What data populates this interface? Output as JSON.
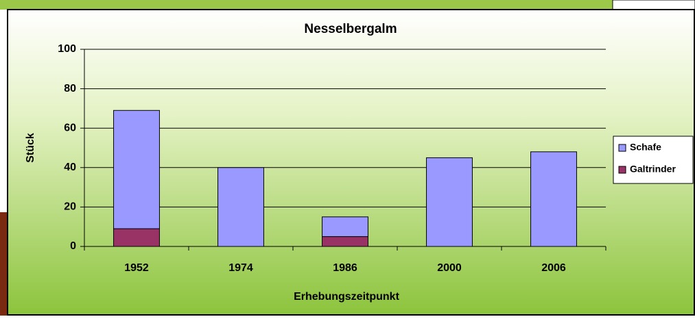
{
  "chart_data": {
    "type": "stacked_bar",
    "title": "Nesselbergalm",
    "x_label": "Erhebungszeitpunkt",
    "y_label": "Stück",
    "categories": [
      "1952",
      "1974",
      "1986",
      "2000",
      "2006"
    ],
    "series": [
      {
        "name": "Schafe",
        "color": "#9999ff",
        "values": [
          60,
          40,
          10,
          45,
          48
        ]
      },
      {
        "name": "Galtrinder",
        "color": "#993366",
        "values": [
          9,
          0,
          5,
          0,
          0
        ]
      }
    ],
    "ylim": [
      0,
      100
    ],
    "yticks": [
      0,
      20,
      40,
      60,
      80,
      100
    ],
    "grid": true,
    "legend": "right"
  }
}
